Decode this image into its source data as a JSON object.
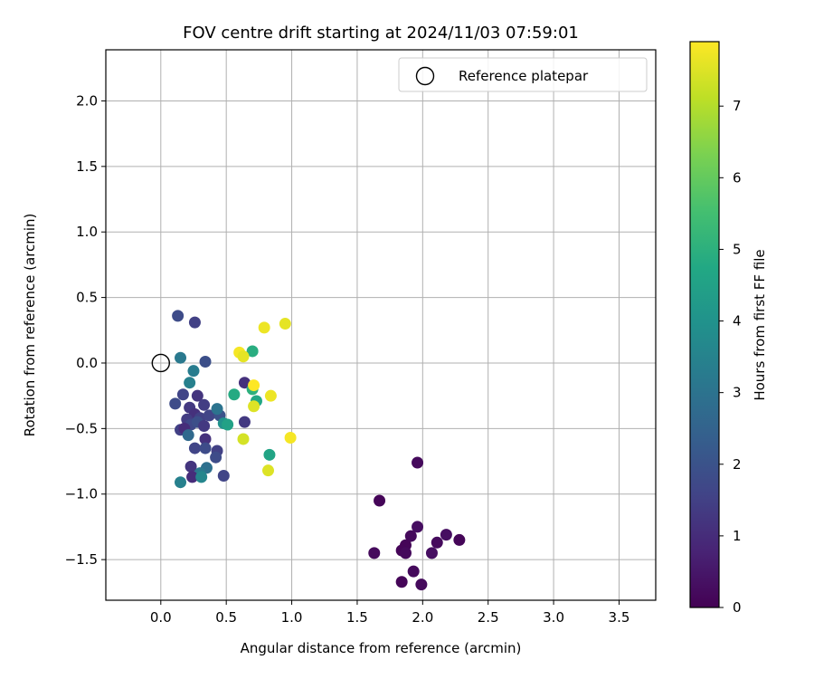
{
  "chart_data": {
    "type": "scatter",
    "title": "FOV centre drift starting at 2024/11/03 07:59:01",
    "xlabel": "Angular distance from reference (arcmin)",
    "ylabel": "Rotation from reference (arcmin)",
    "xlim": [
      -0.42,
      3.78
    ],
    "ylim": [
      -1.81,
      2.39
    ],
    "xticks": [
      "0.0",
      "0.5",
      "1.0",
      "1.5",
      "2.0",
      "2.5",
      "3.0",
      "3.5"
    ],
    "xtick_values": [
      0.0,
      0.5,
      1.0,
      1.5,
      2.0,
      2.5,
      3.0,
      3.5
    ],
    "yticks": [
      "2.0",
      "1.5",
      "1.0",
      "0.5",
      "0.0",
      "−0.5",
      "−1.0",
      "−1.5"
    ],
    "ytick_values": [
      2.0,
      1.5,
      1.0,
      0.5,
      0.0,
      -0.5,
      -1.0,
      -1.5
    ],
    "grid": true,
    "legend": {
      "position": "top-right",
      "label": "Reference platepar",
      "marker": "open-circle"
    },
    "reference_point": {
      "x": 0.0,
      "y": 0.0
    },
    "colorbar": {
      "label": "Hours from first FF file",
      "range": [
        0,
        7.9
      ],
      "ticks": [
        "0",
        "1",
        "2",
        "3",
        "4",
        "5",
        "6",
        "7"
      ],
      "tick_values": [
        0,
        1,
        2,
        3,
        4,
        5,
        6,
        7
      ],
      "colormap": "viridis"
    },
    "points": [
      {
        "x": 1.96,
        "y": -0.76,
        "h": 0.2
      },
      {
        "x": 1.67,
        "y": -1.05,
        "h": 0.1
      },
      {
        "x": 1.96,
        "y": -1.25,
        "h": 0.3
      },
      {
        "x": 1.91,
        "y": -1.32,
        "h": 0.2
      },
      {
        "x": 2.18,
        "y": -1.31,
        "h": 0.3
      },
      {
        "x": 2.28,
        "y": -1.35,
        "h": 0.1
      },
      {
        "x": 2.11,
        "y": -1.37,
        "h": 0.2
      },
      {
        "x": 1.87,
        "y": -1.39,
        "h": 0.1
      },
      {
        "x": 1.84,
        "y": -1.43,
        "h": 0.1
      },
      {
        "x": 1.87,
        "y": -1.45,
        "h": 0.2
      },
      {
        "x": 1.63,
        "y": -1.45,
        "h": 0.2
      },
      {
        "x": 2.07,
        "y": -1.45,
        "h": 0.3
      },
      {
        "x": 1.93,
        "y": -1.59,
        "h": 0.2
      },
      {
        "x": 1.84,
        "y": -1.67,
        "h": 0.1
      },
      {
        "x": 1.99,
        "y": -1.69,
        "h": 0.2
      },
      {
        "x": 0.13,
        "y": 0.36,
        "h": 1.8
      },
      {
        "x": 0.26,
        "y": 0.31,
        "h": 1.5
      },
      {
        "x": 0.34,
        "y": 0.01,
        "h": 1.9
      },
      {
        "x": 0.15,
        "y": 0.04,
        "h": 3.2
      },
      {
        "x": 0.25,
        "y": -0.06,
        "h": 3.3
      },
      {
        "x": 0.22,
        "y": -0.15,
        "h": 3.4
      },
      {
        "x": 0.17,
        "y": -0.24,
        "h": 1.6
      },
      {
        "x": 0.28,
        "y": -0.25,
        "h": 1.2
      },
      {
        "x": 0.11,
        "y": -0.31,
        "h": 1.8
      },
      {
        "x": 0.22,
        "y": -0.34,
        "h": 1.3
      },
      {
        "x": 0.33,
        "y": -0.32,
        "h": 1.4
      },
      {
        "x": 0.26,
        "y": -0.39,
        "h": 1.1
      },
      {
        "x": 0.3,
        "y": -0.42,
        "h": 1.5
      },
      {
        "x": 0.37,
        "y": -0.4,
        "h": 1.6
      },
      {
        "x": 0.45,
        "y": -0.4,
        "h": 2.0
      },
      {
        "x": 0.2,
        "y": -0.43,
        "h": 1.4
      },
      {
        "x": 0.23,
        "y": -0.47,
        "h": 1.7
      },
      {
        "x": 0.28,
        "y": -0.45,
        "h": 1.9
      },
      {
        "x": 0.33,
        "y": -0.48,
        "h": 1.3
      },
      {
        "x": 0.15,
        "y": -0.51,
        "h": 1.5
      },
      {
        "x": 0.18,
        "y": -0.5,
        "h": 1.0
      },
      {
        "x": 0.21,
        "y": -0.55,
        "h": 2.7
      },
      {
        "x": 0.43,
        "y": -0.35,
        "h": 3.0
      },
      {
        "x": 0.48,
        "y": -0.46,
        "h": 4.0
      },
      {
        "x": 0.51,
        "y": -0.47,
        "h": 4.5
      },
      {
        "x": 0.34,
        "y": -0.58,
        "h": 1.1
      },
      {
        "x": 0.26,
        "y": -0.65,
        "h": 1.6
      },
      {
        "x": 0.34,
        "y": -0.65,
        "h": 1.8
      },
      {
        "x": 0.43,
        "y": -0.67,
        "h": 1.5
      },
      {
        "x": 0.42,
        "y": -0.72,
        "h": 1.8
      },
      {
        "x": 0.23,
        "y": -0.79,
        "h": 1.2
      },
      {
        "x": 0.35,
        "y": -0.8,
        "h": 2.9
      },
      {
        "x": 0.3,
        "y": -0.84,
        "h": 3.2
      },
      {
        "x": 0.24,
        "y": -0.87,
        "h": 1.0
      },
      {
        "x": 0.31,
        "y": -0.87,
        "h": 3.6
      },
      {
        "x": 0.48,
        "y": -0.86,
        "h": 1.6
      },
      {
        "x": 0.15,
        "y": -0.91,
        "h": 3.4
      },
      {
        "x": 0.64,
        "y": -0.15,
        "h": 1.1
      },
      {
        "x": 0.64,
        "y": -0.45,
        "h": 1.3
      },
      {
        "x": 0.56,
        "y": -0.24,
        "h": 4.8
      },
      {
        "x": 0.7,
        "y": -0.2,
        "h": 5.0
      },
      {
        "x": 0.73,
        "y": -0.29,
        "h": 4.7
      },
      {
        "x": 0.7,
        "y": 0.09,
        "h": 4.9
      },
      {
        "x": 0.83,
        "y": -0.7,
        "h": 4.6
      },
      {
        "x": 0.6,
        "y": 0.08,
        "h": 7.8
      },
      {
        "x": 0.63,
        "y": 0.05,
        "h": 7.6
      },
      {
        "x": 0.79,
        "y": 0.27,
        "h": 7.7
      },
      {
        "x": 0.95,
        "y": 0.3,
        "h": 7.6
      },
      {
        "x": 0.71,
        "y": -0.17,
        "h": 7.9
      },
      {
        "x": 0.84,
        "y": -0.25,
        "h": 7.7
      },
      {
        "x": 0.71,
        "y": -0.33,
        "h": 7.5
      },
      {
        "x": 0.63,
        "y": -0.58,
        "h": 7.4
      },
      {
        "x": 0.99,
        "y": -0.57,
        "h": 7.8
      },
      {
        "x": 0.82,
        "y": -0.82,
        "h": 7.5
      }
    ]
  }
}
